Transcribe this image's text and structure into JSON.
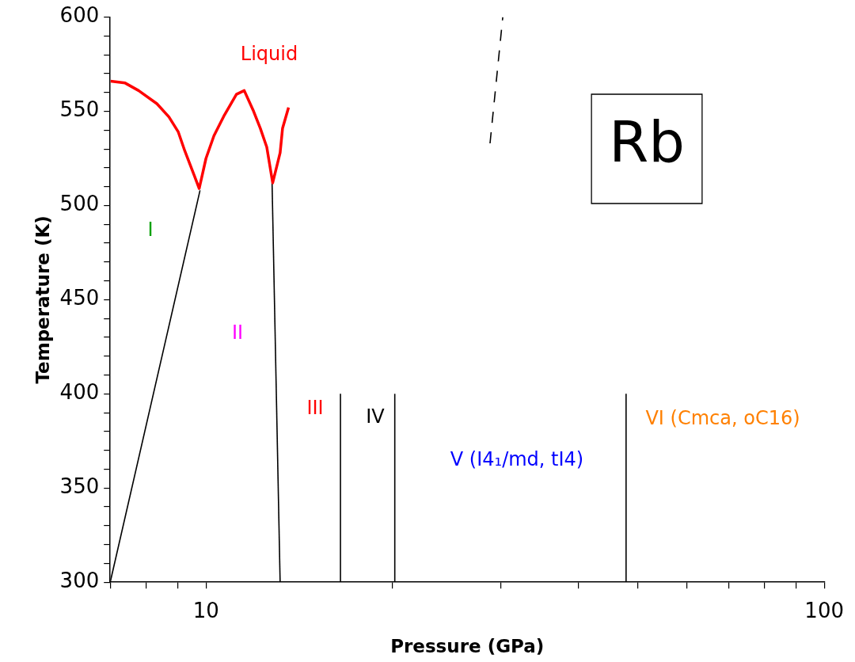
{
  "chart_data": {
    "type": "line",
    "xlabel": "Pressure (GPa)",
    "ylabel": "Temperature (K)",
    "log": "x",
    "grid": false,
    "legend": false,
    "marker": "none",
    "line_style": "solid",
    "xlim": [
      7,
      100
    ],
    "ylim": [
      300,
      600
    ],
    "xticks": [
      {
        "value": 7,
        "label": null
      },
      {
        "value": 8,
        "label": null
      },
      {
        "value": 9,
        "label": null
      },
      10,
      {
        "value": 20,
        "label": null
      },
      {
        "value": 30,
        "label": null
      },
      {
        "value": 40,
        "label": null
      },
      {
        "value": 50,
        "label": null
      },
      {
        "value": 60,
        "label": null
      },
      {
        "value": 70,
        "label": null
      },
      {
        "value": 80,
        "label": null
      },
      {
        "value": 90,
        "label": null
      },
      100
    ],
    "yticks": [
      300,
      {
        "value": 310,
        "label": null
      },
      {
        "value": 320,
        "label": null
      },
      {
        "value": 330,
        "label": null
      },
      {
        "value": 340,
        "label": null
      },
      350,
      {
        "value": 360,
        "label": null
      },
      {
        "value": 370,
        "label": null
      },
      {
        "value": 380,
        "label": null
      },
      {
        "value": 390,
        "label": null
      },
      400,
      {
        "value": 410,
        "label": null
      },
      {
        "value": 420,
        "label": null
      },
      {
        "value": 430,
        "label": null
      },
      {
        "value": 440,
        "label": null
      },
      450,
      {
        "value": 460,
        "label": null
      },
      {
        "value": 470,
        "label": null
      },
      {
        "value": 480,
        "label": null
      },
      {
        "value": 490,
        "label": null
      },
      500,
      {
        "value": 510,
        "label": null
      },
      {
        "value": 520,
        "label": null
      },
      {
        "value": 530,
        "label": null
      },
      {
        "value": 540,
        "label": null
      },
      550,
      {
        "value": 560,
        "label": null
      },
      {
        "value": 570,
        "label": null
      },
      {
        "value": 580,
        "label": null
      },
      {
        "value": 590,
        "label": null
      },
      600
    ],
    "series": [
      {
        "color": "#ff0000",
        "x": [
          7.01,
          7.4,
          7.78,
          8.33,
          8.71,
          9.02,
          9.24,
          9.57,
          9.75,
          10.0,
          10.3,
          10.71,
          11.2,
          11.53,
          11.94,
          12.24,
          12.54,
          12.82,
          13.18,
          13.3,
          13.6
        ],
        "values": [
          566,
          565,
          561,
          554,
          547,
          539,
          529,
          516,
          509,
          525,
          537,
          548,
          559,
          561,
          550,
          541,
          531,
          512,
          528,
          541,
          552
        ]
      },
      {
        "color": "#000000",
        "x": [
          7,
          9.78
        ],
        "values": [
          300,
          508
        ]
      },
      {
        "color": "#000000",
        "x": [
          12.79,
          13.18
        ],
        "values": [
          512,
          300
        ]
      },
      {
        "color": "#000000",
        "x": [
          16.5,
          16.5
        ],
        "values": [
          300,
          400
        ]
      },
      {
        "color": "#000000",
        "x": [
          20.2,
          20.2
        ],
        "values": [
          300,
          400
        ]
      },
      {
        "color": "#000000",
        "x": [
          47.8,
          47.8
        ],
        "values": [
          300,
          400
        ]
      },
      {
        "color": "#000000",
        "line_style": "dashed",
        "x": [
          28.8,
          30.2
        ],
        "values": [
          533,
          600
        ]
      }
    ],
    "annotations": [
      "Liquid",
      "I",
      "II",
      "III",
      "IV",
      "V (I4₁/md, tI4)",
      "VI (Cmca, oC16)",
      "Rb"
    ]
  }
}
